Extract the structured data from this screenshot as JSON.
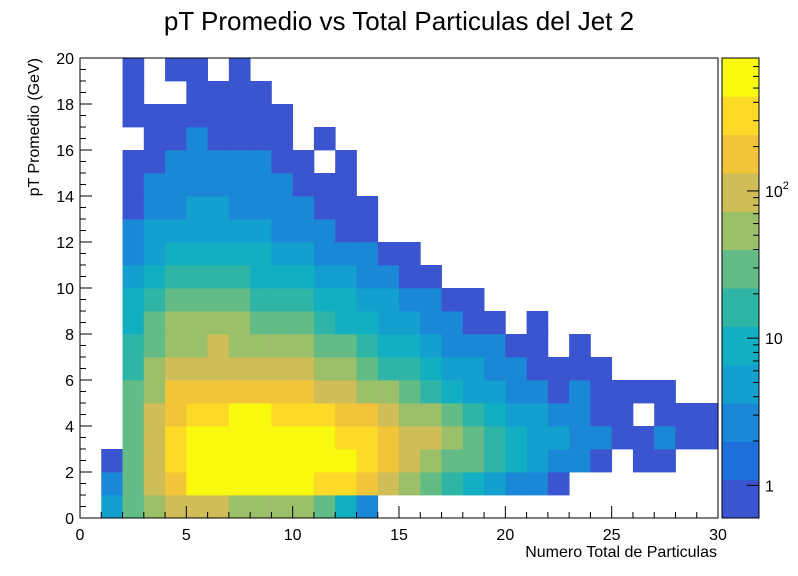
{
  "chart_data": {
    "type": "heatmap",
    "title": "pT Promedio vs Total Particulas del Jet 2",
    "xlabel": "Numero Total de Particulas",
    "ylabel": "pT Promedio (GeV)",
    "xlim": [
      0,
      30
    ],
    "ylim": [
      0,
      20
    ],
    "x_bin_width": 1,
    "y_bin_width": 1,
    "x_ticks": [
      "0",
      "5",
      "10",
      "15",
      "20",
      "25",
      "30"
    ],
    "y_ticks": [
      "0",
      "2",
      "4",
      "6",
      "8",
      "10",
      "12",
      "14",
      "16",
      "18",
      "20"
    ],
    "z_scale": "log",
    "z_range": [
      0.6,
      800
    ],
    "z_ticks": [
      "1",
      "10",
      "10^2"
    ],
    "grid": false,
    "palette": [
      "#3a55cf",
      "#1e6fd9",
      "#1a88d6",
      "#13a0cf",
      "#12aec2",
      "#2fb5a6",
      "#63bb86",
      "#9cbf6a",
      "#cfbd57",
      "#f2c43a",
      "#fdd928",
      "#f8f90e"
    ],
    "rows": [
      [
        0,
        4,
        25,
        50,
        100,
        95,
        80,
        70,
        60,
        50,
        40,
        25,
        12,
        2,
        0,
        0,
        0,
        0,
        0,
        0,
        0,
        0,
        0,
        0,
        0,
        0,
        0,
        0,
        0,
        0
      ],
      [
        0,
        2,
        30,
        95,
        200,
        450,
        650,
        700,
        750,
        650,
        550,
        400,
        250,
        150,
        80,
        40,
        25,
        15,
        10,
        5,
        3,
        2,
        1,
        0,
        0,
        0,
        0,
        0,
        0,
        0
      ],
      [
        0,
        1,
        30,
        100,
        250,
        520,
        700,
        780,
        820,
        800,
        700,
        600,
        450,
        320,
        200,
        110,
        65,
        35,
        25,
        15,
        8,
        4,
        3,
        2,
        1,
        0,
        1,
        1,
        0,
        0
      ],
      [
        0,
        0,
        35,
        120,
        280,
        480,
        600,
        720,
        800,
        760,
        620,
        520,
        420,
        300,
        220,
        130,
        80,
        50,
        30,
        15,
        10,
        5,
        4,
        3,
        2,
        1,
        1,
        2,
        1,
        1
      ],
      [
        0,
        0,
        30,
        90,
        200,
        320,
        400,
        460,
        480,
        400,
        330,
        270,
        200,
        150,
        100,
        60,
        40,
        25,
        15,
        10,
        6,
        4,
        3,
        2,
        1,
        1,
        0,
        1,
        1,
        1
      ],
      [
        0,
        0,
        25,
        70,
        140,
        200,
        220,
        230,
        210,
        180,
        150,
        120,
        90,
        60,
        40,
        25,
        15,
        10,
        6,
        4,
        3,
        2,
        1,
        2,
        1,
        1,
        1,
        1,
        0,
        0
      ],
      [
        0,
        0,
        20,
        50,
        90,
        110,
        120,
        110,
        100,
        90,
        75,
        60,
        45,
        30,
        20,
        14,
        9,
        6,
        4,
        3,
        2,
        1,
        1,
        1,
        1,
        0,
        0,
        0,
        0,
        0
      ],
      [
        0,
        0,
        15,
        35,
        55,
        70,
        75,
        70,
        60,
        50,
        40,
        30,
        25,
        18,
        12,
        8,
        5,
        3,
        2,
        2,
        1,
        1,
        0,
        1,
        0,
        0,
        0,
        0,
        0,
        0
      ],
      [
        0,
        0,
        10,
        25,
        40,
        45,
        50,
        45,
        38,
        30,
        24,
        18,
        12,
        9,
        6,
        4,
        3,
        2,
        1,
        1,
        0,
        1,
        0,
        0,
        0,
        0,
        0,
        0,
        0,
        0
      ],
      [
        0,
        0,
        7,
        15,
        22,
        28,
        30,
        26,
        20,
        18,
        14,
        10,
        7,
        5,
        4,
        2,
        2,
        1,
        1,
        0,
        0,
        0,
        0,
        0,
        0,
        0,
        0,
        0,
        0,
        0
      ],
      [
        0,
        0,
        5,
        10,
        14,
        18,
        18,
        15,
        12,
        10,
        8,
        6,
        4,
        3,
        2,
        1,
        1,
        0,
        0,
        0,
        0,
        0,
        0,
        0,
        0,
        0,
        0,
        0,
        0,
        0
      ],
      [
        0,
        0,
        3,
        6,
        9,
        10,
        11,
        9,
        8,
        6,
        5,
        3,
        2,
        2,
        1,
        1,
        0,
        0,
        0,
        0,
        0,
        0,
        0,
        0,
        0,
        0,
        0,
        0,
        0,
        0
      ],
      [
        0,
        0,
        2,
        4,
        5,
        6,
        6,
        5,
        4,
        3,
        2,
        2,
        1,
        1,
        0,
        0,
        0,
        0,
        0,
        0,
        0,
        0,
        0,
        0,
        0,
        0,
        0,
        0,
        0,
        0
      ],
      [
        0,
        0,
        1,
        3,
        3,
        4,
        4,
        3,
        3,
        2,
        2,
        1,
        1,
        1,
        0,
        0,
        0,
        0,
        0,
        0,
        0,
        0,
        0,
        0,
        0,
        0,
        0,
        0,
        0,
        0
      ],
      [
        0,
        0,
        1,
        2,
        2,
        3,
        3,
        3,
        2,
        2,
        1,
        1,
        1,
        0,
        0,
        0,
        0,
        0,
        0,
        0,
        0,
        0,
        0,
        0,
        0,
        0,
        0,
        0,
        0,
        0
      ],
      [
        0,
        0,
        1,
        1,
        2,
        2,
        2,
        2,
        2,
        1,
        1,
        0,
        1,
        0,
        0,
        0,
        0,
        0,
        0,
        0,
        0,
        0,
        0,
        0,
        0,
        0,
        0,
        0,
        0,
        0
      ],
      [
        0,
        0,
        0,
        1,
        1,
        2,
        1,
        1,
        1,
        1,
        0,
        1,
        0,
        0,
        0,
        0,
        0,
        0,
        0,
        0,
        0,
        0,
        0,
        0,
        0,
        0,
        0,
        0,
        0,
        0
      ],
      [
        0,
        0,
        1,
        1,
        1,
        1,
        1,
        1,
        1,
        1,
        0,
        0,
        0,
        0,
        0,
        0,
        0,
        0,
        0,
        0,
        0,
        0,
        0,
        0,
        0,
        0,
        0,
        0,
        0,
        0
      ],
      [
        0,
        0,
        1,
        0,
        0,
        1,
        1,
        1,
        1,
        0,
        0,
        0,
        0,
        0,
        0,
        0,
        0,
        0,
        0,
        0,
        0,
        0,
        0,
        0,
        0,
        0,
        0,
        0,
        0,
        0
      ],
      [
        0,
        0,
        1,
        0,
        1,
        1,
        0,
        1,
        0,
        0,
        0,
        0,
        0,
        0,
        0,
        0,
        0,
        0,
        0,
        0,
        0,
        0,
        0,
        0,
        0,
        0,
        0,
        0,
        0,
        0
      ]
    ]
  }
}
